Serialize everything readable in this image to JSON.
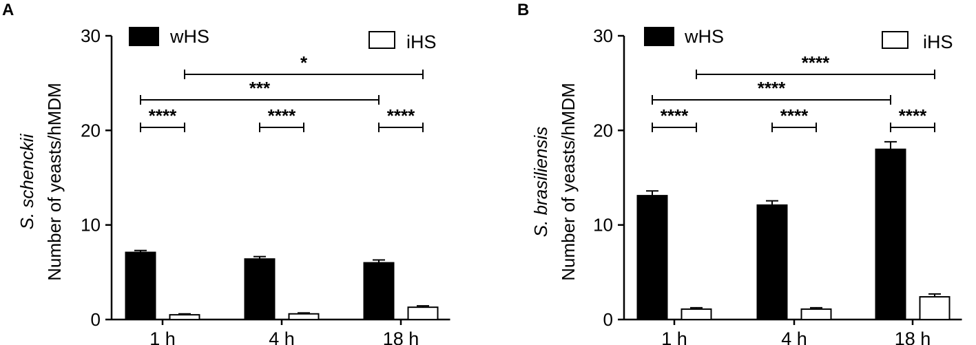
{
  "chart_data": [
    {
      "type": "bar",
      "panel": "A",
      "ylabel_italic": "S. schenckii",
      "ylabel": "Number of yeasts/hMDM",
      "ylim": [
        0,
        30
      ],
      "yticks": [
        "0",
        "10",
        "20",
        "30"
      ],
      "categories": [
        "1 h",
        "4 h",
        "18 h"
      ],
      "series": [
        {
          "name": "wHS",
          "color": "#000000",
          "values": [
            7.1,
            6.4,
            6.0
          ],
          "errors": [
            0.2,
            0.25,
            0.3
          ]
        },
        {
          "name": "iHS",
          "color": "#ffffff",
          "values": [
            0.5,
            0.6,
            1.3
          ],
          "errors": [
            0.1,
            0.1,
            0.15
          ]
        }
      ],
      "significance": [
        {
          "label": "****",
          "type": "pair",
          "cat": 0
        },
        {
          "label": "****",
          "type": "pair",
          "cat": 1
        },
        {
          "label": "****",
          "type": "pair",
          "cat": 2
        },
        {
          "label": "***",
          "type": "across",
          "from": [
            0,
            0
          ],
          "to": [
            2,
            0
          ],
          "level": 1
        },
        {
          "label": "*",
          "type": "across",
          "from": [
            0,
            1
          ],
          "to": [
            2,
            1
          ],
          "level": 2
        }
      ]
    },
    {
      "type": "bar",
      "panel": "B",
      "ylabel_italic": "S. brasiliensis",
      "ylabel": "Number of yeasts/hMDM",
      "ylim": [
        0,
        30
      ],
      "yticks": [
        "0",
        "10",
        "20",
        "30"
      ],
      "categories": [
        "1 h",
        "4 h",
        "18 h"
      ],
      "series": [
        {
          "name": "wHS",
          "color": "#000000",
          "values": [
            13.1,
            12.1,
            18.0
          ],
          "errors": [
            0.5,
            0.45,
            0.8
          ]
        },
        {
          "name": "iHS",
          "color": "#ffffff",
          "values": [
            1.1,
            1.1,
            2.4
          ],
          "errors": [
            0.15,
            0.15,
            0.3
          ]
        }
      ],
      "significance": [
        {
          "label": "****",
          "type": "pair",
          "cat": 0
        },
        {
          "label": "****",
          "type": "pair",
          "cat": 1
        },
        {
          "label": "****",
          "type": "pair",
          "cat": 2
        },
        {
          "label": "****",
          "type": "across",
          "from": [
            0,
            0
          ],
          "to": [
            2,
            0
          ],
          "level": 1
        },
        {
          "label": "****",
          "type": "across",
          "from": [
            0,
            1
          ],
          "to": [
            2,
            1
          ],
          "level": 2
        }
      ]
    }
  ]
}
